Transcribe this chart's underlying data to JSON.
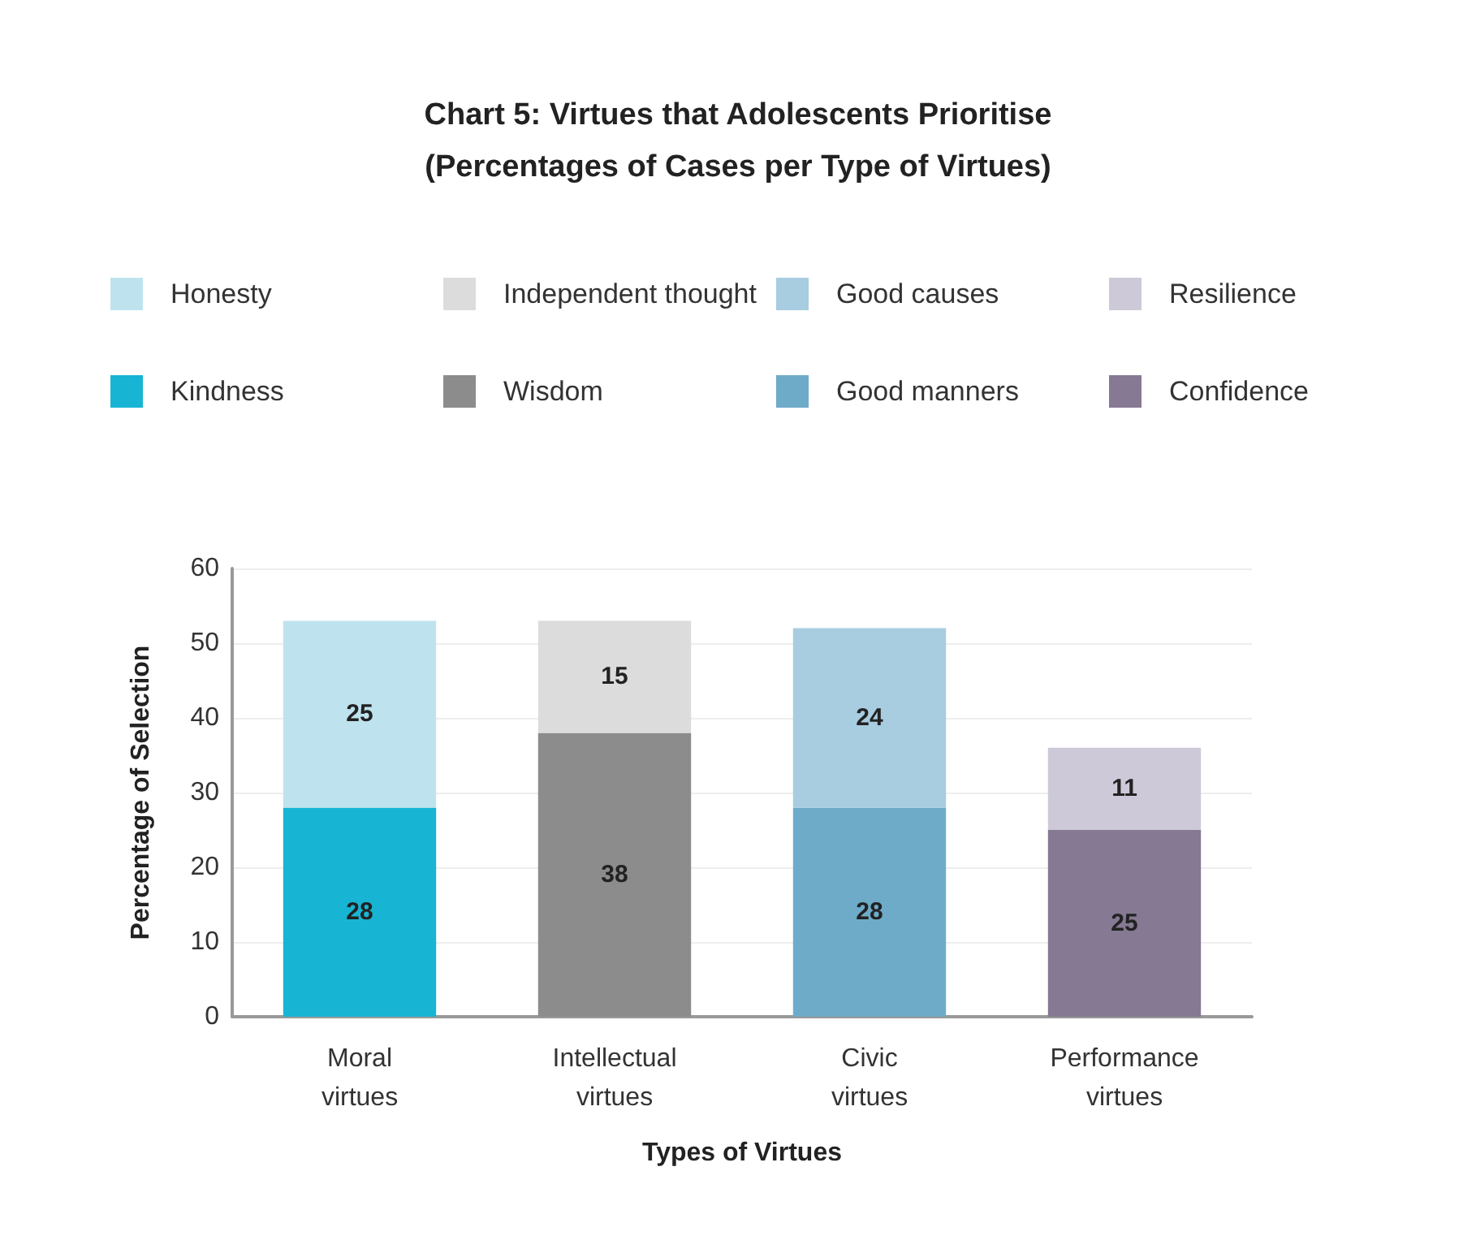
{
  "chart_data": {
    "type": "bar",
    "title": "Chart 5: Virtues that Adolescents Prioritise\n(Percentages of Cases per Type of Virtues)",
    "xlabel": "Types of Virtues",
    "ylabel": "Percentage of Selection",
    "categories": [
      "Moral\nvirtues",
      "Intellectual\nvirtues",
      "Civic\nvirtues",
      "Performance\nvirtues"
    ],
    "stacked": true,
    "data_labels": true,
    "grid": "y",
    "legend": "top",
    "ylim": [
      0,
      60
    ],
    "yticks": [
      0,
      10,
      20,
      30,
      40,
      50,
      60
    ],
    "series": [
      {
        "name": "Kindness",
        "color": "#17b5d3",
        "values": [
          28,
          null,
          null,
          null
        ]
      },
      {
        "name": "Honesty",
        "color": "#bfe3ee",
        "values": [
          25,
          null,
          null,
          null
        ]
      },
      {
        "name": "Wisdom",
        "color": "#8c8c8c",
        "values": [
          null,
          38,
          null,
          null
        ]
      },
      {
        "name": "Independent thought",
        "color": "#dcdcdc",
        "values": [
          null,
          15,
          null,
          null
        ]
      },
      {
        "name": "Good manners",
        "color": "#6eabc9",
        "values": [
          null,
          null,
          28,
          null
        ]
      },
      {
        "name": "Good causes",
        "color": "#a8cce0",
        "values": [
          null,
          null,
          24,
          null
        ]
      },
      {
        "name": "Confidence",
        "color": "#867993",
        "values": [
          null,
          null,
          null,
          25
        ]
      },
      {
        "name": "Resilience",
        "color": "#cdc9d8",
        "values": [
          null,
          null,
          null,
          11
        ]
      }
    ]
  }
}
